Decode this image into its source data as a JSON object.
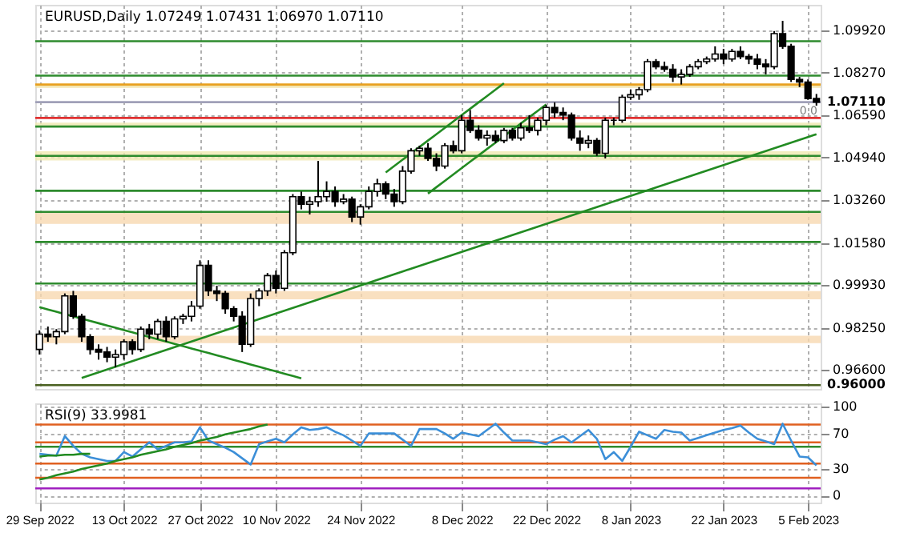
{
  "chart_data": [
    {
      "type": "candlestick",
      "title": "EURUSD,Daily  1.07249 1.07431 1.06970 1.07110",
      "categories": [
        null,
        null,
        null,
        null,
        null,
        null,
        null,
        null,
        null,
        null,
        null,
        null,
        null,
        null,
        null,
        null,
        null,
        null,
        null,
        null,
        null,
        null,
        null,
        null,
        null,
        null,
        null,
        null,
        null,
        null,
        null,
        null,
        null,
        null,
        null,
        null,
        null,
        null,
        null,
        null,
        null,
        null,
        null,
        null,
        null,
        null,
        null,
        null,
        null,
        null,
        null,
        null,
        null,
        null,
        null,
        null,
        null,
        null,
        null,
        null,
        null,
        null,
        null,
        null,
        null,
        null,
        null,
        null,
        null,
        null,
        null,
        null,
        null,
        null,
        null,
        null,
        null,
        null,
        null,
        null,
        null,
        null,
        null,
        null,
        null,
        null,
        null,
        null,
        null,
        null,
        null,
        null,
        null
      ],
      "ohlc": [
        [
          0.974,
          0.9815,
          0.972,
          0.98
        ],
        [
          0.98,
          0.983,
          0.977,
          0.979
        ],
        [
          0.979,
          0.982,
          0.976,
          0.981
        ],
        [
          0.981,
          0.996,
          0.98,
          0.995
        ],
        [
          0.995,
          0.997,
          0.986,
          0.987
        ],
        [
          0.987,
          0.988,
          0.977,
          0.979
        ],
        [
          0.979,
          0.98,
          0.972,
          0.974
        ],
        [
          0.974,
          0.976,
          0.97,
          0.973
        ],
        [
          0.973,
          0.975,
          0.969,
          0.971
        ],
        [
          0.971,
          0.974,
          0.967,
          0.972
        ],
        [
          0.972,
          0.978,
          0.97,
          0.977
        ],
        [
          0.977,
          0.978,
          0.972,
          0.974
        ],
        [
          0.974,
          0.983,
          0.973,
          0.982
        ],
        [
          0.982,
          0.984,
          0.978,
          0.98
        ],
        [
          0.98,
          0.986,
          0.978,
          0.985
        ],
        [
          0.985,
          0.987,
          0.977,
          0.979
        ],
        [
          0.979,
          0.987,
          0.978,
          0.986
        ],
        [
          0.986,
          0.988,
          0.984,
          0.987
        ],
        [
          0.987,
          0.993,
          0.985,
          0.991
        ],
        [
          0.991,
          1.009,
          0.99,
          1.007
        ],
        [
          1.007,
          1.009,
          0.995,
          0.997
        ],
        [
          0.997,
          0.999,
          0.993,
          0.996
        ],
        [
          0.996,
          0.997,
          0.988,
          0.99
        ],
        [
          0.99,
          0.991,
          0.985,
          0.987
        ],
        [
          0.987,
          0.989,
          0.973,
          0.976
        ],
        [
          0.976,
          0.996,
          0.975,
          0.994
        ],
        [
          0.994,
          0.998,
          0.991,
          0.997
        ],
        [
          0.997,
          1.004,
          0.995,
          1.003
        ],
        [
          1.003,
          1.005,
          0.996,
          0.998
        ],
        [
          0.998,
          1.013,
          0.997,
          1.012
        ],
        [
          1.012,
          1.035,
          1.011,
          1.034
        ],
        [
          1.034,
          1.036,
          1.029,
          1.031
        ],
        [
          1.031,
          1.034,
          1.027,
          1.032
        ],
        [
          1.032,
          1.048,
          1.03,
          1.034
        ],
        [
          1.034,
          1.04,
          1.032,
          1.036
        ],
        [
          1.036,
          1.038,
          1.03,
          1.032
        ],
        [
          1.032,
          1.035,
          1.031,
          1.033
        ],
        [
          1.033,
          1.034,
          1.024,
          1.026
        ],
        [
          1.026,
          1.031,
          1.023,
          1.03
        ],
        [
          1.03,
          1.038,
          1.029,
          1.036
        ],
        [
          1.036,
          1.041,
          1.034,
          1.039
        ],
        [
          1.039,
          1.04,
          1.033,
          1.035
        ],
        [
          1.035,
          1.037,
          1.03,
          1.032
        ],
        [
          1.032,
          1.046,
          1.031,
          1.044
        ],
        [
          1.044,
          1.053,
          1.043,
          1.052
        ],
        [
          1.052,
          1.054,
          1.05,
          1.053
        ],
        [
          1.053,
          1.055,
          1.048,
          1.049
        ],
        [
          1.049,
          1.051,
          1.044,
          1.046
        ],
        [
          1.046,
          1.055,
          1.045,
          1.054
        ],
        [
          1.054,
          1.056,
          1.051,
          1.052
        ],
        [
          1.052,
          1.066,
          1.051,
          1.064
        ],
        [
          1.064,
          1.068,
          1.059,
          1.06
        ],
        [
          1.06,
          1.062,
          1.056,
          1.057
        ],
        [
          1.057,
          1.06,
          1.054,
          1.058
        ],
        [
          1.058,
          1.06,
          1.055,
          1.056
        ],
        [
          1.056,
          1.061,
          1.055,
          1.06
        ],
        [
          1.06,
          1.061,
          1.056,
          1.057
        ],
        [
          1.057,
          1.063,
          1.056,
          1.061
        ],
        [
          1.061,
          1.066,
          1.059,
          1.06
        ],
        [
          1.06,
          1.065,
          1.058,
          1.064
        ],
        [
          1.064,
          1.07,
          1.062,
          1.069
        ],
        [
          1.069,
          1.071,
          1.065,
          1.067
        ],
        [
          1.067,
          1.069,
          1.064,
          1.066
        ],
        [
          1.066,
          1.067,
          1.056,
          1.057
        ],
        [
          1.057,
          1.06,
          1.052,
          1.055
        ],
        [
          1.055,
          1.058,
          1.053,
          1.056
        ],
        [
          1.056,
          1.057,
          1.05,
          1.051
        ],
        [
          1.051,
          1.065,
          1.049,
          1.064
        ],
        [
          1.064,
          1.065,
          1.062,
          1.064
        ],
        [
          1.064,
          1.074,
          1.063,
          1.073
        ],
        [
          1.073,
          1.076,
          1.072,
          1.074
        ],
        [
          1.074,
          1.077,
          1.072,
          1.076
        ],
        [
          1.076,
          1.088,
          1.075,
          1.087
        ],
        [
          1.087,
          1.088,
          1.084,
          1.085
        ],
        [
          1.085,
          1.087,
          1.083,
          1.084
        ],
        [
          1.084,
          1.086,
          1.079,
          1.081
        ],
        [
          1.081,
          1.084,
          1.078,
          1.082
        ],
        [
          1.082,
          1.086,
          1.081,
          1.085
        ],
        [
          1.085,
          1.088,
          1.084,
          1.087
        ],
        [
          1.087,
          1.089,
          1.086,
          1.088
        ],
        [
          1.088,
          1.093,
          1.087,
          1.09
        ],
        [
          1.09,
          1.092,
          1.086,
          1.088
        ],
        [
          1.088,
          1.092,
          1.087,
          1.091
        ],
        [
          1.091,
          1.093,
          1.088,
          1.089
        ],
        [
          1.089,
          1.09,
          1.086,
          1.088
        ],
        [
          1.088,
          1.09,
          1.084,
          1.086
        ],
        [
          1.086,
          1.088,
          1.082,
          1.085
        ],
        [
          1.085,
          1.099,
          1.084,
          1.098
        ],
        [
          1.098,
          1.103,
          1.092,
          1.093
        ],
        [
          1.093,
          1.094,
          1.079,
          1.08
        ],
        [
          1.08,
          1.081,
          1.077,
          1.079
        ],
        [
          1.079,
          1.08,
          1.072,
          1.0725
        ],
        [
          1.07249,
          1.07431,
          1.0697,
          1.0711
        ]
      ],
      "series": [
        {
          "type": "line",
          "color": "#228b22",
          "values": [
            null,
            null,
            null,
            null,
            null,
            0.9628,
            0.9639,
            0.965,
            0.9661,
            0.9672,
            0.9683,
            0.9694,
            0.9705,
            0.9716,
            0.9727,
            0.9738,
            0.9749,
            0.976,
            0.9771,
            0.9782,
            0.9793,
            0.9804,
            0.9815,
            0.9826,
            0.9837,
            0.9848,
            0.9859,
            0.987,
            0.9881,
            0.9892,
            0.9903,
            0.9914,
            0.9925,
            0.9936,
            0.9947,
            0.9958,
            0.9969,
            0.998,
            0.9991,
            1.0002,
            1.0013,
            1.0024,
            1.0035,
            1.0046,
            1.0057,
            1.0068,
            1.0079,
            1.009,
            1.0101,
            1.0112,
            1.0123,
            1.0134,
            1.0145,
            1.0156,
            1.0167,
            1.0178,
            1.0189,
            1.02,
            1.0211,
            1.0222,
            1.0233,
            1.0244,
            1.0255,
            1.0266,
            1.0277,
            1.0288,
            1.0299,
            1.031,
            1.0321,
            1.0332,
            1.0343,
            1.0354,
            1.0365,
            1.0376,
            1.0387,
            1.0398,
            1.0409,
            1.042,
            1.0431,
            1.0442,
            1.0453,
            1.0464,
            1.0475,
            1.0486,
            1.0497,
            1.0508,
            1.0519,
            1.053,
            1.0541,
            1.0552,
            1.0563,
            1.0574,
            1.0585
          ]
        },
        {
          "type": "line",
          "color": "#228b22",
          "values": [
            0.9906,
            0.9897,
            0.9888,
            0.9879,
            0.987,
            0.9861,
            0.9852,
            0.9843,
            0.9834,
            0.9825,
            0.9816,
            0.9807,
            0.9798,
            0.9789,
            0.978,
            0.9771,
            0.9762,
            0.9753,
            0.9744,
            0.9735,
            0.9726,
            0.9717,
            0.9708,
            0.9699,
            0.969,
            0.9681,
            0.9672,
            0.9663,
            0.9654,
            0.9645,
            0.9636,
            0.9627,
            null,
            null,
            null,
            null,
            null,
            null,
            null,
            null,
            null,
            null,
            null,
            null,
            null,
            null,
            null,
            null,
            null,
            null,
            null,
            null,
            null,
            null,
            null,
            null,
            null,
            null,
            null,
            null,
            null,
            null,
            null,
            null,
            null,
            null,
            null,
            null,
            null,
            null,
            null,
            null,
            null,
            null,
            null,
            null,
            null,
            null,
            null,
            null,
            null,
            null,
            null,
            null,
            null,
            null,
            null,
            null,
            null,
            null,
            null,
            null,
            null
          ]
        },
        {
          "type": "line",
          "color": "#228b22",
          "values": [
            null,
            null,
            null,
            null,
            null,
            null,
            null,
            null,
            null,
            null,
            null,
            null,
            null,
            null,
            null,
            null,
            null,
            null,
            null,
            null,
            null,
            null,
            null,
            null,
            null,
            null,
            null,
            null,
            null,
            null,
            null,
            null,
            null,
            null,
            null,
            null,
            null,
            null,
            null,
            null,
            null,
            1.0435,
            1.046,
            1.0485,
            1.051,
            1.0535,
            1.056,
            1.0585,
            1.061,
            1.0635,
            1.066,
            1.0685,
            1.071,
            1.0735,
            1.076,
            1.0785,
            null,
            null,
            null,
            null,
            null,
            null,
            null,
            null,
            null,
            null,
            null,
            null,
            null,
            null,
            null,
            null,
            null,
            null,
            null,
            null,
            null,
            null,
            null,
            null,
            null,
            null,
            null,
            null,
            null,
            null,
            null,
            null,
            null,
            null,
            null,
            null,
            null
          ]
        },
        {
          "type": "line",
          "color": "#228b22",
          "values": [
            null,
            null,
            null,
            null,
            null,
            null,
            null,
            null,
            null,
            null,
            null,
            null,
            null,
            null,
            null,
            null,
            null,
            null,
            null,
            null,
            null,
            null,
            null,
            null,
            null,
            null,
            null,
            null,
            null,
            null,
            null,
            null,
            null,
            null,
            null,
            null,
            null,
            null,
            null,
            null,
            null,
            null,
            null,
            null,
            null,
            null,
            1.0352,
            1.0377,
            1.0402,
            1.0427,
            1.0452,
            1.0477,
            1.0502,
            1.0527,
            1.0552,
            1.0577,
            1.0602,
            1.0627,
            1.0652,
            1.0677,
            1.0702,
            null,
            null,
            null,
            null,
            null,
            null,
            null,
            null,
            null,
            null,
            null,
            null,
            null,
            null,
            null,
            null,
            null,
            null,
            null,
            null,
            null,
            null,
            null,
            null,
            null,
            null,
            null,
            null,
            null,
            null,
            null,
            null
          ]
        }
      ],
      "ylim": [
        0.9585,
        1.1093
      ],
      "yticks": [
        {
          "value": 0.966,
          "label": "0.96600"
        },
        {
          "value": 0.9825,
          "label": "0.98250"
        },
        {
          "value": 0.9993,
          "label": "0.99930"
        },
        {
          "value": 1.0158,
          "label": "1.01580"
        },
        {
          "value": 1.0326,
          "label": "1.03260"
        },
        {
          "value": 1.0494,
          "label": "1.04940"
        },
        {
          "value": 1.0659,
          "label": "1.06590"
        },
        {
          "value": 1.0827,
          "label": "1.08270"
        },
        {
          "value": 1.0992,
          "label": "1.09920"
        }
      ],
      "tick_labels": "y",
      "grid": true,
      "ref_lines": [
        {
          "axis": "y",
          "value": 1.095,
          "color": "#2e8b2e"
        },
        {
          "axis": "y",
          "value": 1.0815,
          "color": "#2e8b2e"
        },
        {
          "axis": "y",
          "value": 1.078,
          "color": "#e8a020"
        },
        {
          "axis": "y",
          "value": 1.0711,
          "color": "#a0a0b8",
          "label": "1.07110"
        },
        {
          "axis": "y",
          "value": 1.0649,
          "color": "#e03030"
        },
        {
          "axis": "y",
          "value": 1.0615,
          "color": "#2e8b2e"
        },
        {
          "axis": "y",
          "value": 1.05,
          "color": "#2e8b2e"
        },
        {
          "axis": "y",
          "value": 1.0363,
          "color": "#2e8b2e"
        },
        {
          "axis": "y",
          "value": 1.028,
          "color": "#2e8b2e"
        },
        {
          "axis": "y",
          "value": 1.0162,
          "color": "#2e8b2e"
        },
        {
          "axis": "y",
          "value": 0.9999,
          "color": "#2e8b2e"
        },
        {
          "axis": "y",
          "value": 0.96,
          "color": "#4a6020",
          "label": "0.96000"
        }
      ],
      "bands": [
        {
          "axis": "y",
          "from": 1.0767,
          "to": 1.0778,
          "color": "#f0e0a0"
        },
        {
          "axis": "y",
          "from": 1.0612,
          "to": 1.063,
          "color": "#f0e8b0"
        },
        {
          "axis": "y",
          "from": 1.0482,
          "to": 1.0518,
          "color": "#f0e8b0"
        },
        {
          "axis": "y",
          "from": 1.0233,
          "to": 1.028,
          "color": "#f8d8b0"
        },
        {
          "axis": "y",
          "from": 0.9937,
          "to": 0.9969,
          "color": "#f8d8b0"
        },
        {
          "axis": "y",
          "from": 0.9765,
          "to": 0.9794,
          "color": "#f8d8b0"
        }
      ],
      "annotations": [
        "0.0"
      ]
    },
    {
      "type": "line",
      "title": "RSI(9) 33.9981",
      "categories": [
        "29 Sep 2022",
        null,
        null,
        null,
        null,
        null,
        null,
        null,
        null,
        null,
        "13 Oct 2022",
        null,
        null,
        null,
        null,
        null,
        null,
        null,
        null,
        "27 Oct 2022",
        null,
        null,
        null,
        null,
        null,
        null,
        null,
        null,
        "10 Nov 2022",
        null,
        null,
        null,
        null,
        null,
        null,
        null,
        null,
        null,
        "24 Nov 2022",
        null,
        null,
        null,
        null,
        null,
        null,
        null,
        null,
        null,
        null,
        null,
        "8 Dec 2022",
        null,
        null,
        null,
        null,
        null,
        null,
        null,
        null,
        null,
        "22 Dec 2022",
        null,
        null,
        null,
        null,
        null,
        null,
        null,
        null,
        null,
        "8 Jan 2023",
        null,
        null,
        null,
        null,
        null,
        null,
        null,
        null,
        null,
        null,
        "22 Jan 2023",
        null,
        null,
        null,
        null,
        null,
        null,
        null,
        null,
        null,
        "5 Feb 2023",
        null
      ],
      "series": [
        {
          "color": "#3c8fd8",
          "values": [
            47,
            46,
            45,
            67,
            56,
            47,
            43,
            41,
            39,
            39,
            49,
            44,
            52,
            60,
            52,
            56,
            60,
            60,
            61,
            77,
            62,
            58,
            54,
            49,
            42,
            35,
            58,
            61,
            64,
            60,
            69,
            77,
            74,
            75,
            77,
            72,
            68,
            62,
            56,
            70,
            70,
            70,
            70,
            63,
            56,
            75,
            75,
            75,
            70,
            64,
            71,
            69,
            67,
            74,
            81,
            71,
            62,
            62,
            62,
            60,
            58,
            63,
            67,
            60,
            67,
            74,
            64,
            41,
            49,
            39,
            55,
            72,
            68,
            64,
            74,
            72,
            71,
            62,
            65,
            68,
            71,
            74,
            76,
            79,
            71,
            64,
            61,
            58,
            81,
            62,
            44,
            43,
            34
          ]
        },
        {
          "color": "#228b22",
          "values": [
            18,
            20,
            23,
            25,
            27,
            30,
            32,
            34,
            36,
            39,
            41,
            43,
            46,
            48,
            50,
            52,
            55,
            57,
            59,
            62,
            64,
            66,
            69,
            71,
            73,
            75,
            78,
            80,
            null,
            null,
            null,
            null,
            null,
            null,
            null,
            null,
            null,
            null,
            null,
            null,
            null,
            null,
            null,
            null,
            null,
            null,
            null,
            null,
            null,
            null,
            null,
            null,
            null,
            null,
            null,
            null,
            null,
            null,
            null,
            null,
            null,
            null,
            null,
            null,
            null,
            null,
            null,
            null,
            null,
            null,
            null,
            null,
            null,
            null,
            null,
            null,
            null,
            null,
            null,
            null,
            null,
            null,
            null,
            null,
            null,
            null,
            null,
            null,
            null,
            null,
            null,
            null,
            null
          ]
        },
        {
          "color": "#228b22",
          "values": [
            44,
            45,
            45,
            46,
            46,
            47,
            47,
            null,
            null,
            null,
            null,
            null,
            null,
            null,
            null,
            null,
            null,
            null,
            null,
            null,
            null,
            null,
            null,
            null,
            null,
            null,
            null,
            null,
            null,
            null,
            null,
            null,
            null,
            null,
            null,
            null,
            null,
            null,
            null,
            null,
            null,
            null,
            null,
            null,
            null,
            null,
            null,
            null,
            null,
            null,
            null,
            null,
            null,
            null,
            null,
            null,
            null,
            null,
            null,
            null,
            null,
            null,
            null,
            null,
            null,
            null,
            null,
            null,
            null,
            null,
            null,
            null,
            null,
            null,
            null,
            null,
            null,
            null,
            null,
            null,
            null,
            null,
            null,
            null,
            null,
            null,
            null,
            null,
            null,
            null,
            null,
            null,
            null
          ]
        }
      ],
      "ylim": [
        -8,
        104
      ],
      "yticks": [
        0,
        30,
        70,
        100
      ],
      "grid": true,
      "ref_lines": [
        {
          "axis": "y",
          "value": 80,
          "color": "#e06020"
        },
        {
          "axis": "y",
          "value": 60,
          "color": "#e06020"
        },
        {
          "axis": "y",
          "value": 55,
          "color": "#2e8b2e"
        },
        {
          "axis": "y",
          "value": 36,
          "color": "#e06020"
        },
        {
          "axis": "y",
          "value": 20,
          "color": "#e06020"
        },
        {
          "axis": "y",
          "value": 8,
          "color": "#a020c0"
        }
      ]
    }
  ]
}
